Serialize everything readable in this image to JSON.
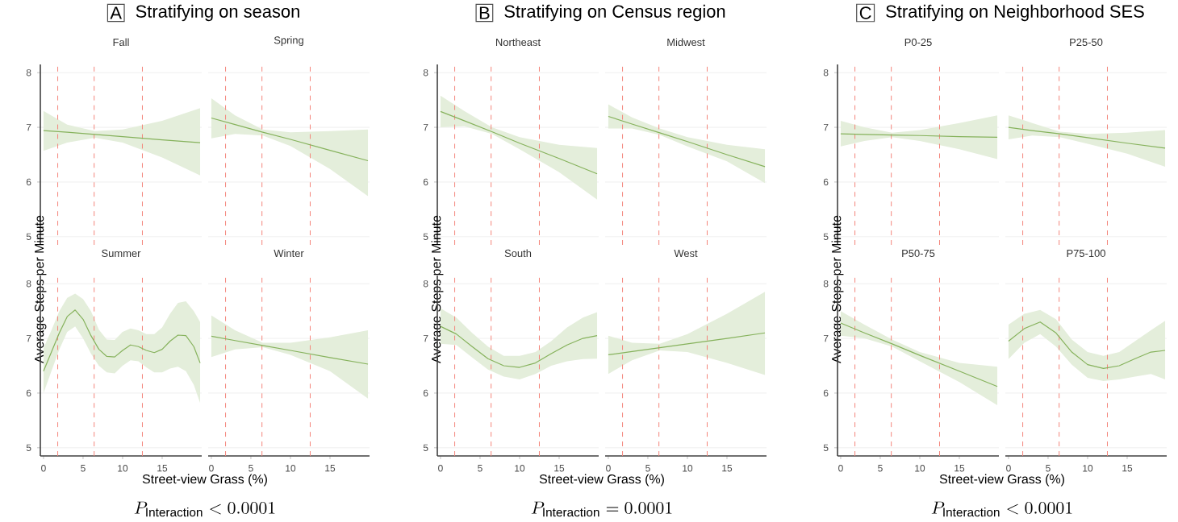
{
  "chart_data": [
    {
      "type": "line",
      "title": "Fall",
      "ylabel": "Average Steps per Minute",
      "annotations": [
        "A",
        "Stratifying on season"
      ],
      "tick_labels": "y",
      "xlim": [
        -0.4,
        20
      ],
      "ylim": [
        4.85,
        8.15
      ],
      "yticks": [
        5,
        6,
        7,
        8
      ],
      "grid": "y",
      "ref_lines": [
        {
          "axis": "x",
          "value": 1.8,
          "color": "#f4857a",
          "line_style": "dashed"
        },
        {
          "axis": "x",
          "value": 6.4,
          "color": "#f4857a",
          "line_style": "dashed"
        },
        {
          "axis": "x",
          "value": 12.5,
          "color": "#f4857a",
          "line_style": "dashed"
        }
      ],
      "series": [
        {
          "color": "#86b25c",
          "x": [
            0,
            3,
            6.5,
            10,
            15,
            19.8
          ],
          "values": [
            6.94,
            6.91,
            6.87,
            6.83,
            6.77,
            6.72
          ],
          "lower": [
            6.57,
            6.72,
            6.81,
            6.72,
            6.45,
            6.12
          ],
          "upper": [
            7.3,
            7.05,
            6.93,
            6.96,
            7.12,
            7.35
          ]
        }
      ]
    },
    {
      "type": "line",
      "title": "Spring",
      "tick_labels": false,
      "xlim": [
        -0.4,
        20
      ],
      "ylim": [
        4.85,
        8.15
      ],
      "yticks": [
        5,
        6,
        7,
        8
      ],
      "grid": "y",
      "ref_lines": [
        {
          "axis": "x",
          "value": 1.8,
          "color": "#f4857a",
          "line_style": "dashed"
        },
        {
          "axis": "x",
          "value": 6.4,
          "color": "#f4857a",
          "line_style": "dashed"
        },
        {
          "axis": "x",
          "value": 12.5,
          "color": "#f4857a",
          "line_style": "dashed"
        }
      ],
      "series": [
        {
          "color": "#86b25c",
          "x": [
            0,
            3,
            6.5,
            10,
            15,
            19.8
          ],
          "values": [
            7.17,
            7.05,
            6.91,
            6.78,
            6.58,
            6.39
          ],
          "lower": [
            6.8,
            6.88,
            6.85,
            6.66,
            6.24,
            5.74
          ],
          "upper": [
            7.53,
            7.22,
            6.96,
            6.91,
            6.93,
            6.96
          ]
        }
      ]
    },
    {
      "type": "line",
      "title": "Summer",
      "xlabel": "Street-view Grass (%)",
      "annotations": [
        "P_{\\mathrm{Interaction}} < 0.0001"
      ],
      "xlim": [
        -0.4,
        20
      ],
      "ylim": [
        4.85,
        8.15
      ],
      "xticks": [
        0,
        5,
        10,
        15
      ],
      "yticks": [
        5,
        6,
        7,
        8
      ],
      "grid": "y",
      "ref_lines": [
        {
          "axis": "x",
          "value": 1.8,
          "color": "#f4857a",
          "line_style": "dashed"
        },
        {
          "axis": "x",
          "value": 6.4,
          "color": "#f4857a",
          "line_style": "dashed"
        },
        {
          "axis": "x",
          "value": 12.5,
          "color": "#f4857a",
          "line_style": "dashed"
        }
      ],
      "series": [
        {
          "color": "#86b25c",
          "x": [
            0,
            1,
            2,
            3,
            4,
            5,
            6,
            7,
            8,
            9,
            10,
            11,
            12,
            13,
            14,
            15,
            16,
            17,
            18,
            19,
            19.8
          ],
          "values": [
            6.4,
            6.75,
            7.1,
            7.4,
            7.52,
            7.35,
            7.05,
            6.8,
            6.67,
            6.66,
            6.78,
            6.88,
            6.85,
            6.78,
            6.74,
            6.8,
            6.95,
            7.06,
            7.05,
            6.85,
            6.55
          ],
          "lower": [
            6.0,
            6.4,
            6.8,
            7.12,
            7.22,
            7.0,
            6.72,
            6.5,
            6.38,
            6.36,
            6.5,
            6.6,
            6.58,
            6.47,
            6.38,
            6.38,
            6.45,
            6.48,
            6.4,
            6.15,
            5.82
          ],
          "upper": [
            6.82,
            7.15,
            7.5,
            7.74,
            7.82,
            7.72,
            7.5,
            7.16,
            6.98,
            6.97,
            7.12,
            7.18,
            7.15,
            7.08,
            7.08,
            7.2,
            7.45,
            7.65,
            7.68,
            7.5,
            7.3
          ]
        }
      ]
    },
    {
      "type": "line",
      "title": "Winter",
      "tick_labels": "x",
      "xlim": [
        -0.4,
        20
      ],
      "ylim": [
        4.85,
        8.15
      ],
      "xticks": [
        0,
        5,
        10,
        15
      ],
      "yticks": [
        5,
        6,
        7,
        8
      ],
      "grid": "y",
      "ref_lines": [
        {
          "axis": "x",
          "value": 1.8,
          "color": "#f4857a",
          "line_style": "dashed"
        },
        {
          "axis": "x",
          "value": 6.4,
          "color": "#f4857a",
          "line_style": "dashed"
        },
        {
          "axis": "x",
          "value": 12.5,
          "color": "#f4857a",
          "line_style": "dashed"
        }
      ],
      "series": [
        {
          "color": "#86b25c",
          "x": [
            0,
            3,
            6.5,
            10,
            15,
            19.8
          ],
          "values": [
            7.04,
            6.96,
            6.87,
            6.78,
            6.65,
            6.53
          ],
          "lower": [
            6.66,
            6.8,
            6.84,
            6.7,
            6.4,
            5.9
          ],
          "upper": [
            7.42,
            7.15,
            6.92,
            6.92,
            7.02,
            7.15
          ]
        }
      ]
    },
    {
      "type": "line",
      "title": "Northeast",
      "ylabel": "Average Steps per Minute",
      "annotations": [
        "B",
        "Stratifying on Census region"
      ],
      "tick_labels": "y",
      "xlim": [
        -0.4,
        20
      ],
      "ylim": [
        4.85,
        8.15
      ],
      "yticks": [
        5,
        6,
        7,
        8
      ],
      "grid": "y",
      "ref_lines": [
        {
          "axis": "x",
          "value": 1.8,
          "color": "#f4857a",
          "line_style": "dashed"
        },
        {
          "axis": "x",
          "value": 6.4,
          "color": "#f4857a",
          "line_style": "dashed"
        },
        {
          "axis": "x",
          "value": 12.5,
          "color": "#f4857a",
          "line_style": "dashed"
        }
      ],
      "series": [
        {
          "color": "#86b25c",
          "x": [
            0,
            3,
            6.5,
            10,
            15,
            19.8
          ],
          "values": [
            7.29,
            7.12,
            6.92,
            6.71,
            6.43,
            6.15
          ],
          "lower": [
            7.0,
            7.02,
            6.88,
            6.6,
            6.18,
            5.68
          ],
          "upper": [
            7.58,
            7.3,
            7.0,
            6.82,
            6.68,
            6.62
          ]
        }
      ]
    },
    {
      "type": "line",
      "title": "Midwest",
      "tick_labels": false,
      "xlim": [
        -0.4,
        20
      ],
      "ylim": [
        4.85,
        8.15
      ],
      "yticks": [
        5,
        6,
        7,
        8
      ],
      "grid": "y",
      "ref_lines": [
        {
          "axis": "x",
          "value": 1.8,
          "color": "#f4857a",
          "line_style": "dashed"
        },
        {
          "axis": "x",
          "value": 6.4,
          "color": "#f4857a",
          "line_style": "dashed"
        },
        {
          "axis": "x",
          "value": 12.5,
          "color": "#f4857a",
          "line_style": "dashed"
        }
      ],
      "series": [
        {
          "color": "#86b25c",
          "x": [
            0,
            3,
            6.5,
            10,
            15,
            19.8
          ],
          "values": [
            7.2,
            7.06,
            6.9,
            6.74,
            6.5,
            6.28
          ],
          "lower": [
            6.98,
            6.98,
            6.86,
            6.65,
            6.38,
            5.98
          ],
          "upper": [
            7.42,
            7.18,
            6.98,
            6.82,
            6.68,
            6.6
          ]
        }
      ]
    },
    {
      "type": "line",
      "title": "South",
      "xlabel": "Street-view Grass (%)",
      "annotations": [
        "P_{\\mathrm{Interaction}} = 0.0001"
      ],
      "xlim": [
        -0.4,
        20
      ],
      "ylim": [
        4.85,
        8.15
      ],
      "xticks": [
        0,
        5,
        10,
        15
      ],
      "yticks": [
        5,
        6,
        7,
        8
      ],
      "grid": "y",
      "ref_lines": [
        {
          "axis": "x",
          "value": 1.8,
          "color": "#f4857a",
          "line_style": "dashed"
        },
        {
          "axis": "x",
          "value": 6.4,
          "color": "#f4857a",
          "line_style": "dashed"
        },
        {
          "axis": "x",
          "value": 12.5,
          "color": "#f4857a",
          "line_style": "dashed"
        }
      ],
      "series": [
        {
          "color": "#86b25c",
          "x": [
            0,
            2,
            4,
            6,
            8,
            10,
            12,
            14,
            16,
            18,
            19.8
          ],
          "values": [
            7.22,
            7.08,
            6.85,
            6.63,
            6.5,
            6.47,
            6.55,
            6.72,
            6.88,
            7.0,
            7.05
          ],
          "lower": [
            6.9,
            6.88,
            6.65,
            6.43,
            6.3,
            6.25,
            6.35,
            6.5,
            6.58,
            6.62,
            6.63
          ],
          "upper": [
            7.55,
            7.38,
            7.1,
            6.85,
            6.68,
            6.68,
            6.75,
            6.95,
            7.2,
            7.38,
            7.48
          ]
        }
      ]
    },
    {
      "type": "line",
      "title": "West",
      "tick_labels": "x",
      "xlim": [
        -0.4,
        20
      ],
      "ylim": [
        4.85,
        8.15
      ],
      "xticks": [
        0,
        5,
        10,
        15
      ],
      "yticks": [
        5,
        6,
        7,
        8
      ],
      "grid": "y",
      "ref_lines": [
        {
          "axis": "x",
          "value": 1.8,
          "color": "#f4857a",
          "line_style": "dashed"
        },
        {
          "axis": "x",
          "value": 6.4,
          "color": "#f4857a",
          "line_style": "dashed"
        },
        {
          "axis": "x",
          "value": 12.5,
          "color": "#f4857a",
          "line_style": "dashed"
        }
      ],
      "series": [
        {
          "color": "#86b25c",
          "x": [
            0,
            3,
            6.5,
            10,
            15,
            19.8
          ],
          "values": [
            6.7,
            6.76,
            6.83,
            6.9,
            7.0,
            7.1
          ],
          "lower": [
            6.35,
            6.6,
            6.78,
            6.75,
            6.55,
            6.33
          ],
          "upper": [
            7.05,
            6.92,
            6.9,
            7.08,
            7.45,
            7.85
          ]
        }
      ]
    },
    {
      "type": "line",
      "title": "P0-25",
      "ylabel": "Average Steps per Minute",
      "annotations": [
        "C",
        "Stratifying on Neighborhood SES"
      ],
      "tick_labels": "y",
      "xlim": [
        -0.4,
        20
      ],
      "ylim": [
        4.85,
        8.15
      ],
      "yticks": [
        5,
        6,
        7,
        8
      ],
      "grid": "y",
      "ref_lines": [
        {
          "axis": "x",
          "value": 1.8,
          "color": "#f4857a",
          "line_style": "dashed"
        },
        {
          "axis": "x",
          "value": 6.4,
          "color": "#f4857a",
          "line_style": "dashed"
        },
        {
          "axis": "x",
          "value": 12.5,
          "color": "#f4857a",
          "line_style": "dashed"
        }
      ],
      "series": [
        {
          "color": "#86b25c",
          "x": [
            0,
            3,
            6.5,
            10,
            15,
            19.8
          ],
          "values": [
            6.88,
            6.87,
            6.86,
            6.85,
            6.83,
            6.82
          ],
          "lower": [
            6.65,
            6.75,
            6.82,
            6.75,
            6.6,
            6.42
          ],
          "upper": [
            7.12,
            7.0,
            6.9,
            6.95,
            7.08,
            7.22
          ]
        }
      ]
    },
    {
      "type": "line",
      "title": "P25-50",
      "tick_labels": false,
      "xlim": [
        -0.4,
        20
      ],
      "ylim": [
        4.85,
        8.15
      ],
      "yticks": [
        5,
        6,
        7,
        8
      ],
      "grid": "y",
      "ref_lines": [
        {
          "axis": "x",
          "value": 1.8,
          "color": "#f4857a",
          "line_style": "dashed"
        },
        {
          "axis": "x",
          "value": 6.4,
          "color": "#f4857a",
          "line_style": "dashed"
        },
        {
          "axis": "x",
          "value": 12.5,
          "color": "#f4857a",
          "line_style": "dashed"
        }
      ],
      "series": [
        {
          "color": "#86b25c",
          "x": [
            0,
            3,
            6.5,
            10,
            15,
            19.8
          ],
          "values": [
            7.0,
            6.94,
            6.88,
            6.81,
            6.71,
            6.62
          ],
          "lower": [
            6.78,
            6.85,
            6.82,
            6.7,
            6.52,
            6.28
          ],
          "upper": [
            7.22,
            7.08,
            6.92,
            6.88,
            6.9,
            6.95
          ]
        }
      ]
    },
    {
      "type": "line",
      "title": "P50-75",
      "xlabel": "Street-view Grass (%)",
      "annotations": [
        "P_{\\mathrm{Interaction}} < 0.0001"
      ],
      "xlim": [
        -0.4,
        20
      ],
      "ylim": [
        4.85,
        8.15
      ],
      "xticks": [
        0,
        5,
        10,
        15
      ],
      "yticks": [
        5,
        6,
        7,
        8
      ],
      "grid": "y",
      "ref_lines": [
        {
          "axis": "x",
          "value": 1.8,
          "color": "#f4857a",
          "line_style": "dashed"
        },
        {
          "axis": "x",
          "value": 6.4,
          "color": "#f4857a",
          "line_style": "dashed"
        },
        {
          "axis": "x",
          "value": 12.5,
          "color": "#f4857a",
          "line_style": "dashed"
        }
      ],
      "series": [
        {
          "color": "#86b25c",
          "x": [
            0,
            3,
            6.5,
            10,
            15,
            19.8
          ],
          "values": [
            7.28,
            7.1,
            6.9,
            6.69,
            6.4,
            6.12
          ],
          "lower": [
            7.05,
            7.0,
            6.85,
            6.58,
            6.2,
            5.78
          ],
          "upper": [
            7.5,
            7.25,
            6.98,
            6.75,
            6.55,
            6.48
          ]
        }
      ]
    },
    {
      "type": "line",
      "title": "P75-100",
      "tick_labels": "x",
      "xlim": [
        -0.4,
        20
      ],
      "ylim": [
        4.85,
        8.15
      ],
      "xticks": [
        0,
        5,
        10,
        15
      ],
      "yticks": [
        5,
        6,
        7,
        8
      ],
      "grid": "y",
      "ref_lines": [
        {
          "axis": "x",
          "value": 1.8,
          "color": "#f4857a",
          "line_style": "dashed"
        },
        {
          "axis": "x",
          "value": 6.4,
          "color": "#f4857a",
          "line_style": "dashed"
        },
        {
          "axis": "x",
          "value": 12.5,
          "color": "#f4857a",
          "line_style": "dashed"
        }
      ],
      "series": [
        {
          "color": "#86b25c",
          "x": [
            0,
            2,
            4,
            6,
            8,
            10,
            12,
            14,
            16,
            18,
            19.8
          ],
          "values": [
            6.95,
            7.18,
            7.3,
            7.1,
            6.75,
            6.52,
            6.45,
            6.5,
            6.63,
            6.75,
            6.78
          ],
          "lower": [
            6.62,
            6.92,
            7.08,
            6.85,
            6.52,
            6.28,
            6.22,
            6.25,
            6.3,
            6.35,
            6.25
          ],
          "upper": [
            7.25,
            7.45,
            7.52,
            7.35,
            6.98,
            6.75,
            6.68,
            6.75,
            6.95,
            7.15,
            7.32
          ]
        }
      ]
    }
  ]
}
